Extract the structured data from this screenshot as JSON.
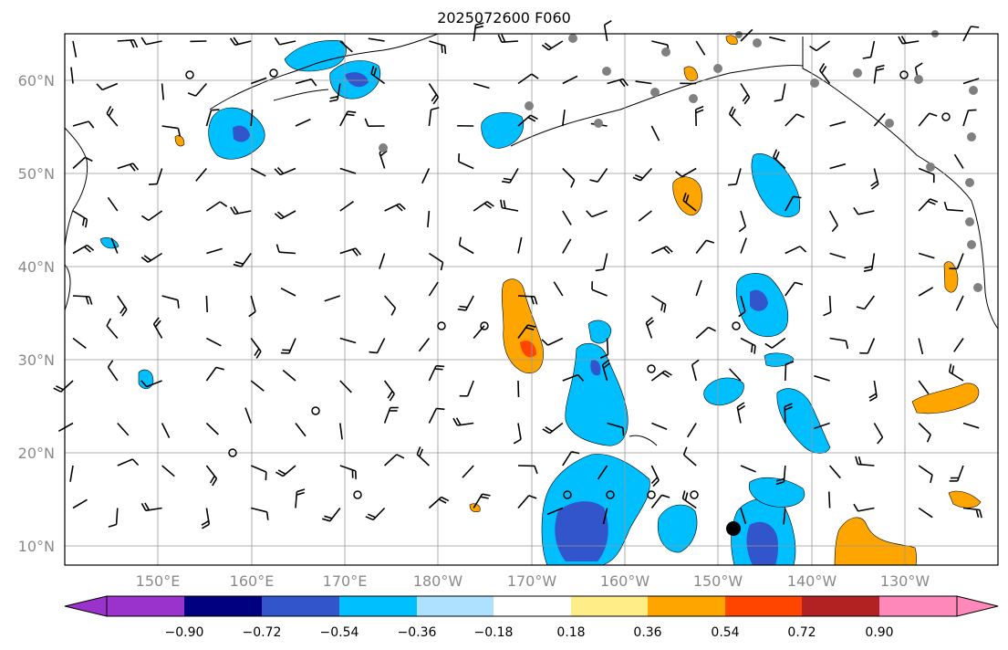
{
  "title": "2025072600 F060",
  "latitude_labels": [
    "60°N",
    "50°N",
    "40°N",
    "30°N",
    "20°N",
    "10°N"
  ],
  "longitude_labels": [
    "150°E",
    "160°E",
    "170°E",
    "180°W",
    "170°W",
    "160°W",
    "150°W",
    "140°W",
    "130°W"
  ],
  "colorbar": {
    "ticks": [
      "−0.90",
      "−0.72",
      "−0.54",
      "−0.36",
      "−0.18",
      "0.18",
      "0.36",
      "0.54",
      "0.72",
      "0.90"
    ],
    "colors": [
      "#9933cc",
      "#000080",
      "#3355cc",
      "#00bfff",
      "#aee0ff",
      "#ffffff",
      "#ffee88",
      "#ffa500",
      "#ff4500",
      "#b22222",
      "#ff88bb"
    ]
  }
}
